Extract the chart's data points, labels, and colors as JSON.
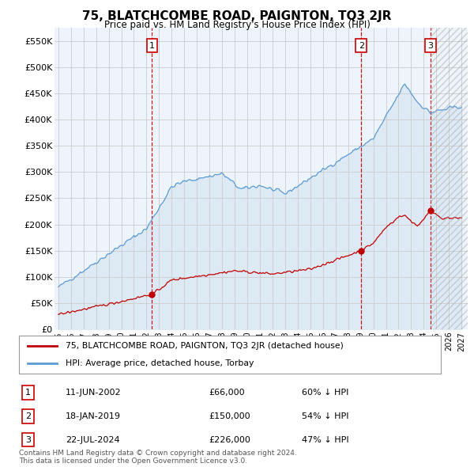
{
  "title": "75, BLATCHCOMBE ROAD, PAIGNTON, TQ3 2JR",
  "subtitle": "Price paid vs. HM Land Registry's House Price Index (HPI)",
  "hpi_label": "HPI: Average price, detached house, Torbay",
  "price_label": "75, BLATCHCOMBE ROAD, PAIGNTON, TQ3 2JR (detached house)",
  "footer1": "Contains HM Land Registry data © Crown copyright and database right 2024.",
  "footer2": "This data is licensed under the Open Government Licence v3.0.",
  "sale_points": [
    {
      "label": "1",
      "date_num": 2002.44,
      "price": 66000,
      "note": "11-JUN-2002",
      "amount": "£66,000",
      "pct": "60% ↓ HPI"
    },
    {
      "label": "2",
      "date_num": 2019.04,
      "price": 150000,
      "note": "18-JAN-2019",
      "amount": "£150,000",
      "pct": "54% ↓ HPI"
    },
    {
      "label": "3",
      "date_num": 2024.55,
      "price": 226000,
      "note": "22-JUL-2024",
      "amount": "£226,000",
      "pct": "47% ↓ HPI"
    }
  ],
  "hpi_color": "#5b9bd5",
  "hpi_fill_color": "#ddeaf6",
  "price_color": "#c00000",
  "vline_color": "#cc0000",
  "background_color": "#ffffff",
  "chart_bg_color": "#eef4fb",
  "grid_color": "#cccccc",
  "ylim": [
    0,
    575000
  ],
  "xlim_start": 1994.7,
  "xlim_end": 2027.5,
  "yticks": [
    0,
    50000,
    100000,
    150000,
    200000,
    250000,
    300000,
    350000,
    400000,
    450000,
    500000,
    550000
  ],
  "ytick_labels": [
    "£0",
    "£50K",
    "£100K",
    "£150K",
    "£200K",
    "£250K",
    "£300K",
    "£350K",
    "£400K",
    "£450K",
    "£500K",
    "£550K"
  ],
  "xticks": [
    1995,
    1996,
    1997,
    1998,
    1999,
    2000,
    2001,
    2002,
    2003,
    2004,
    2005,
    2006,
    2007,
    2008,
    2009,
    2010,
    2011,
    2012,
    2013,
    2014,
    2015,
    2016,
    2017,
    2018,
    2019,
    2020,
    2021,
    2022,
    2023,
    2024,
    2025,
    2026,
    2027
  ],
  "hatch_start": 2024.55
}
